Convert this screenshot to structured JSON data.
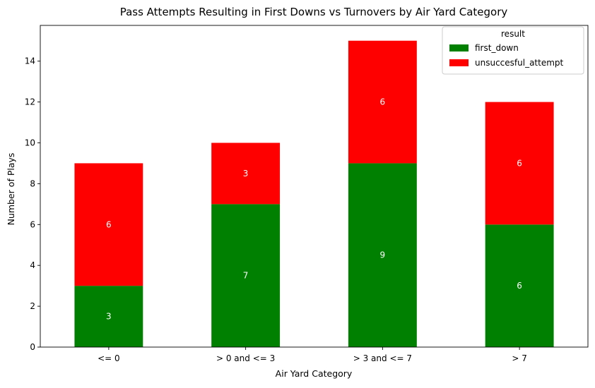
{
  "chart_data": {
    "type": "bar",
    "stacked": true,
    "title": "Pass Attempts Resulting in First Downs vs Turnovers by Air Yard Category",
    "xlabel": "Air Yard Category",
    "ylabel": "Number of Plays",
    "categories": [
      "<= 0",
      "> 0 and <= 3",
      "> 3 and <= 7",
      "> 7"
    ],
    "series": [
      {
        "name": "first_down",
        "values": [
          3,
          7,
          9,
          6
        ],
        "color": "#008000"
      },
      {
        "name": "unsuccesful_attempt",
        "values": [
          6,
          3,
          6,
          6
        ],
        "color": "#ff0000"
      }
    ],
    "ylim": [
      0,
      15.75
    ],
    "yticks": [
      0,
      2,
      4,
      6,
      8,
      10,
      12,
      14
    ],
    "grid": false,
    "data_labels": true,
    "legend": {
      "title": "result",
      "placement": "top-right"
    }
  }
}
